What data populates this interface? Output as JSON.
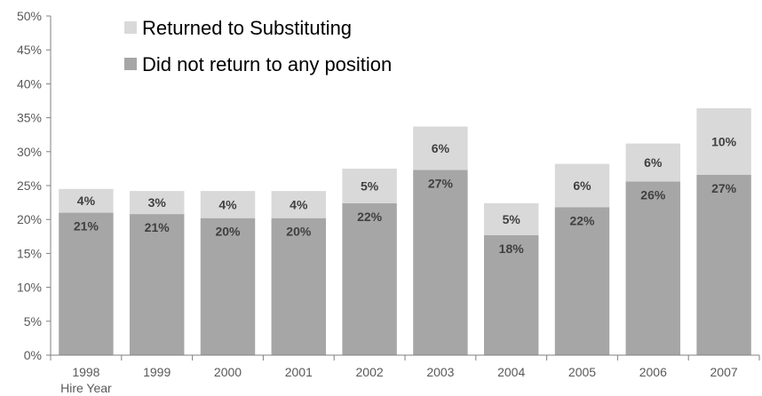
{
  "chart_data": {
    "type": "bar",
    "stacked": true,
    "categories": [
      "1998",
      "1999",
      "2000",
      "2001",
      "2002",
      "2003",
      "2004",
      "2005",
      "2006",
      "2007"
    ],
    "x_extra_label": "Hire Year",
    "series": [
      {
        "name": "Did not return to any position",
        "color": "#a6a6a6",
        "values": [
          21,
          21,
          20,
          20,
          22,
          27,
          18,
          22,
          26,
          27
        ],
        "plot_values": [
          21.0,
          20.8,
          20.2,
          20.2,
          22.4,
          27.3,
          17.7,
          21.8,
          25.6,
          26.6
        ],
        "labels": [
          "21%",
          "21%",
          "20%",
          "20%",
          "22%",
          "27%",
          "18%",
          "22%",
          "26%",
          "27%"
        ]
      },
      {
        "name": "Returned to Substituting",
        "color": "#d9d9d9",
        "values": [
          4,
          3,
          4,
          4,
          5,
          6,
          5,
          6,
          6,
          10
        ],
        "plot_values": [
          3.5,
          3.4,
          4.0,
          4.0,
          5.1,
          6.4,
          4.7,
          6.4,
          5.6,
          9.8
        ],
        "labels": [
          "4%",
          "3%",
          "4%",
          "4%",
          "5%",
          "6%",
          "5%",
          "6%",
          "6%",
          "10%"
        ]
      }
    ],
    "yticks": [
      "0%",
      "5%",
      "10%",
      "15%",
      "20%",
      "25%",
      "30%",
      "35%",
      "40%",
      "45%",
      "50%"
    ],
    "ylim": [
      0,
      50
    ],
    "title": "",
    "xlabel": "Hire Year",
    "ylabel": "",
    "grid": false,
    "legend": {
      "placement": "top-left",
      "entries": [
        {
          "label": "Returned to Substituting",
          "color": "#d9d9d9"
        },
        {
          "label": "Did not return to any position",
          "color": "#a6a6a6"
        }
      ]
    }
  }
}
